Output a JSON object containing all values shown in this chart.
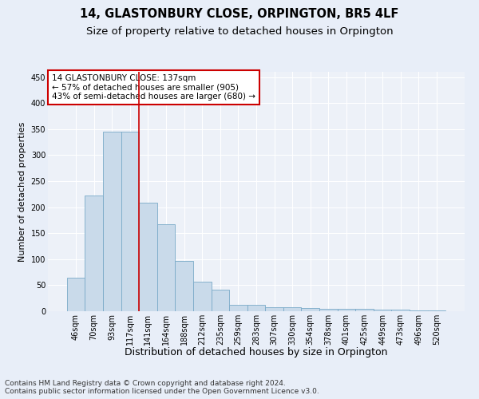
{
  "title": "14, GLASTONBURY CLOSE, ORPINGTON, BR5 4LF",
  "subtitle": "Size of property relative to detached houses in Orpington",
  "xlabel": "Distribution of detached houses by size in Orpington",
  "ylabel": "Number of detached properties",
  "categories": [
    "46sqm",
    "70sqm",
    "93sqm",
    "117sqm",
    "141sqm",
    "164sqm",
    "188sqm",
    "212sqm",
    "235sqm",
    "259sqm",
    "283sqm",
    "307sqm",
    "330sqm",
    "354sqm",
    "378sqm",
    "401sqm",
    "425sqm",
    "449sqm",
    "473sqm",
    "496sqm",
    "520sqm"
  ],
  "values": [
    65,
    222,
    345,
    345,
    208,
    167,
    97,
    56,
    42,
    13,
    13,
    8,
    8,
    6,
    5,
    5,
    5,
    3,
    3,
    2,
    2
  ],
  "bar_color": "#c9daea",
  "bar_edge_color": "#7aaac8",
  "vline_x": 3.5,
  "vline_color": "#cc0000",
  "ylim": [
    0,
    460
  ],
  "yticks": [
    0,
    50,
    100,
    150,
    200,
    250,
    300,
    350,
    400,
    450
  ],
  "annotation_text": "14 GLASTONBURY CLOSE: 137sqm\n← 57% of detached houses are smaller (905)\n43% of semi-detached houses are larger (680) →",
  "annotation_box_color": "#ffffff",
  "annotation_box_edge_color": "#cc0000",
  "footer_line1": "Contains HM Land Registry data © Crown copyright and database right 2024.",
  "footer_line2": "Contains public sector information licensed under the Open Government Licence v3.0.",
  "bg_color": "#e8eef8",
  "plot_bg_color": "#edf1f8",
  "grid_color": "#ffffff",
  "title_fontsize": 10.5,
  "subtitle_fontsize": 9.5,
  "xlabel_fontsize": 9,
  "ylabel_fontsize": 8,
  "tick_fontsize": 7,
  "annotation_fontsize": 7.5,
  "footer_fontsize": 6.5
}
